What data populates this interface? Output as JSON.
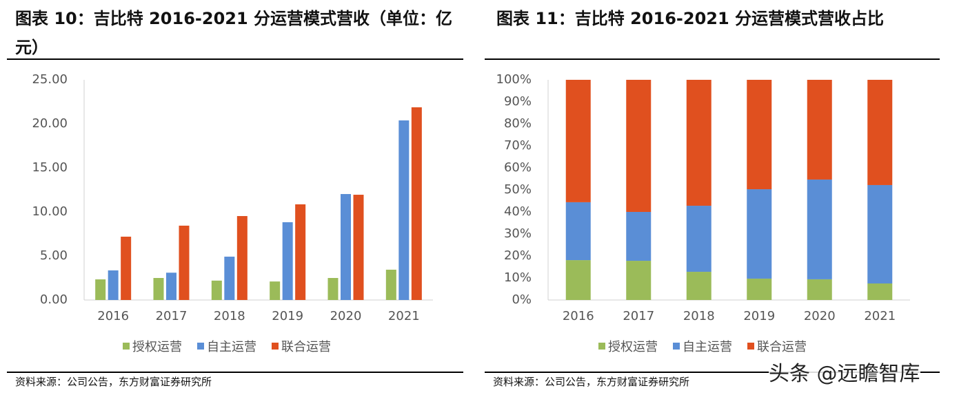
{
  "chart_data": [
    {
      "type": "bar",
      "title": "图表 10：吉比特 2016-2021 分运营模式营收（单位：亿元）",
      "source": "资料来源：公司公告，东方财富证券研究所",
      "categories": [
        "2016",
        "2017",
        "2018",
        "2019",
        "2020",
        "2021"
      ],
      "series": [
        {
          "name": "授权运营",
          "color": "#9bbb59",
          "values": [
            2.34,
            2.5,
            2.2,
            2.1,
            2.5,
            3.44
          ]
        },
        {
          "name": "自主运营",
          "color": "#5a8ed6",
          "values": [
            3.36,
            3.1,
            4.92,
            8.83,
            12.03,
            20.39
          ]
        },
        {
          "name": "联合运营",
          "color": "#e0501f",
          "values": [
            7.19,
            8.44,
            9.53,
            10.86,
            11.95,
            21.88
          ]
        }
      ],
      "ylim": [
        0,
        25
      ],
      "yticks": [
        {
          "value": 0,
          "label": "0.00"
        },
        {
          "value": 5,
          "label": "5.00"
        },
        {
          "value": 10,
          "label": "10.00"
        },
        {
          "value": 15,
          "label": "15.00"
        },
        {
          "value": 20,
          "label": "20.00"
        },
        {
          "value": 25,
          "label": "25.00"
        }
      ]
    },
    {
      "type": "stacked_bar",
      "title": "图表 11：吉比特 2016-2021 分运营模式营收占比",
      "source": "资料来源：公司公告，东方财富证券研究所",
      "watermark": "头条 @远瞻智库",
      "categories": [
        "2016",
        "2017",
        "2018",
        "2019",
        "2020",
        "2021"
      ],
      "series": [
        {
          "name": "授权运营",
          "color": "#9bbb59",
          "values": [
            18.1,
            17.8,
            12.8,
            9.7,
            9.4,
            7.5
          ]
        },
        {
          "name": "自主运营",
          "color": "#5a8ed6",
          "values": [
            26.3,
            22.2,
            30,
            40.6,
            45.3,
            44.7
          ]
        },
        {
          "name": "联合运营",
          "color": "#e0501f",
          "values": [
            55.6,
            60,
            57.2,
            49.7,
            45.3,
            47.8
          ]
        }
      ],
      "ylim": [
        0,
        100
      ],
      "yticks": [
        {
          "value": 0,
          "label": "0%"
        },
        {
          "value": 10,
          "label": "10%"
        },
        {
          "value": 20,
          "label": "20%"
        },
        {
          "value": 30,
          "label": "30%"
        },
        {
          "value": 40,
          "label": "40%"
        },
        {
          "value": 50,
          "label": "50%"
        },
        {
          "value": 60,
          "label": "60%"
        },
        {
          "value": 70,
          "label": "70%"
        },
        {
          "value": 80,
          "label": "80%"
        },
        {
          "value": 90,
          "label": "90%"
        },
        {
          "value": 100,
          "label": "100%"
        }
      ]
    }
  ]
}
